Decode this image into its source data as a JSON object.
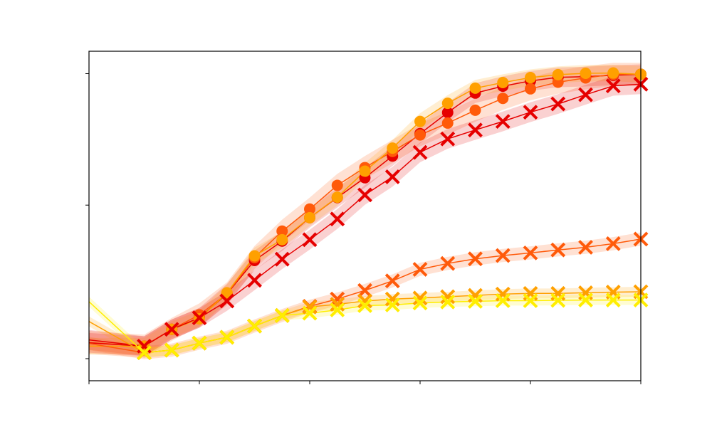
{
  "chart_data": {
    "type": "line",
    "title": "",
    "xlabel": "",
    "ylabel": "",
    "xlim": [
      0,
      100
    ],
    "ylim": [
      0,
      100
    ],
    "x_ticks": [
      0,
      20,
      40,
      60,
      80,
      100
    ],
    "y_ticks": [
      6.7,
      53.3,
      93.2
    ],
    "tick_labels_shown": false,
    "legend": "none",
    "grid": false,
    "colors": {
      "red": "#e60000",
      "orange_red": "#ff5a0a",
      "orange": "#ffa000",
      "yellow": "#ffee00"
    },
    "series": [
      {
        "marker": "circle",
        "color": "#e60000",
        "x": [
          0,
          10,
          15,
          20,
          25,
          30,
          35,
          40,
          45,
          50,
          55,
          60,
          65,
          70,
          75,
          80,
          85,
          90,
          95,
          100
        ],
        "y": [
          12.4,
          10.5,
          15.6,
          19.1,
          26.4,
          36.5,
          42.4,
          49.5,
          55.6,
          61.6,
          68.2,
          75.0,
          81.4,
          87.3,
          89.4,
          91.0,
          92.1,
          92.3,
          92.7,
          93.0
        ],
        "band": 3.0
      },
      {
        "marker": "circle",
        "color": "#ff5a0a",
        "x": [
          0,
          10,
          15,
          20,
          25,
          30,
          35,
          40,
          45,
          50,
          55,
          60,
          65,
          70,
          75,
          80,
          85,
          90,
          95,
          100
        ],
        "y": [
          11.6,
          10.5,
          15.6,
          20.0,
          26.4,
          37.4,
          45.4,
          52.1,
          59.3,
          64.7,
          69.6,
          74.6,
          78.2,
          82.1,
          85.7,
          88.6,
          90.6,
          91.9,
          93.0,
          93.0
        ],
        "band": 3.5
      },
      {
        "marker": "circle",
        "color": "#ffa000",
        "x": [
          0,
          10,
          15,
          20,
          25,
          30,
          35,
          40,
          45,
          50,
          55,
          60,
          65,
          70,
          75,
          80,
          85,
          90,
          95,
          100
        ],
        "y": [
          10.5,
          10.5,
          15.6,
          18.8,
          26.7,
          37.9,
          42.8,
          49.5,
          55.7,
          63.6,
          70.6,
          78.7,
          84.2,
          88.8,
          90.5,
          92.0,
          92.9,
          93.3,
          93.4,
          93.0
        ],
        "band": 2.5
      },
      {
        "marker": "x",
        "color": "#e60000",
        "x": [
          0,
          10,
          15,
          20,
          25,
          30,
          35,
          40,
          45,
          50,
          55,
          60,
          65,
          70,
          75,
          80,
          85,
          90,
          95,
          100
        ],
        "y": [
          11.5,
          10.5,
          15.6,
          19.1,
          24.2,
          30.5,
          36.9,
          42.8,
          49.1,
          56.4,
          61.9,
          69.3,
          73.4,
          76.1,
          78.7,
          81.5,
          84.0,
          86.8,
          89.5,
          90.0
        ],
        "band": 3.0
      },
      {
        "marker": "x",
        "color": "#ff5a0a",
        "x": [
          0,
          10,
          15,
          20,
          25,
          30,
          35,
          40,
          45,
          50,
          55,
          60,
          65,
          70,
          75,
          80,
          85,
          90,
          95,
          100
        ],
        "y": [
          11.3,
          8.5,
          9.3,
          11.4,
          13.2,
          16.6,
          19.8,
          22.6,
          24.8,
          27.4,
          30.3,
          33.8,
          35.6,
          37.0,
          38.0,
          38.8,
          39.7,
          40.5,
          41.6,
          43.0
        ],
        "band": 2.0
      },
      {
        "marker": "x",
        "color": "#ffa000",
        "x": [
          0,
          10,
          15,
          20,
          25,
          30,
          35,
          40,
          45,
          50,
          55,
          60,
          65,
          70,
          75,
          80,
          85,
          90,
          95,
          100
        ],
        "y": [
          18.0,
          8.5,
          9.3,
          11.4,
          13.2,
          16.6,
          19.8,
          22.4,
          23.2,
          24.2,
          24.8,
          25.1,
          25.5,
          25.9,
          26.3,
          26.5,
          26.5,
          26.7,
          26.9,
          27.0
        ],
        "band": 1.5
      },
      {
        "marker": "x",
        "color": "#ffee00",
        "x": [
          0,
          10,
          15,
          20,
          25,
          30,
          35,
          40,
          45,
          50,
          55,
          60,
          65,
          70,
          75,
          80,
          85,
          90,
          95,
          100
        ],
        "y": [
          24.0,
          8.5,
          9.3,
          11.4,
          13.2,
          16.6,
          19.8,
          20.5,
          21.5,
          22.8,
          23.0,
          23.6,
          23.9,
          24.1,
          24.3,
          24.3,
          24.4,
          24.5,
          24.5,
          24.5
        ],
        "band": 1.5
      }
    ]
  }
}
